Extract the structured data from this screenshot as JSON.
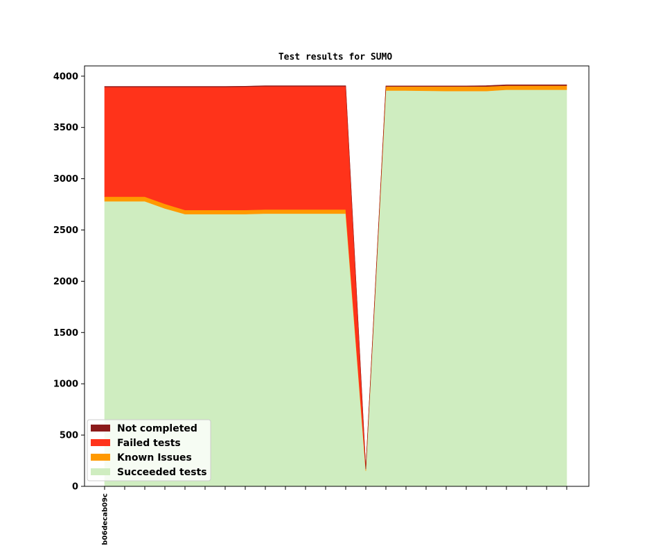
{
  "chart_data": {
    "type": "area",
    "stacked": true,
    "title": "Test results for SUMO",
    "xlabel": "",
    "ylabel": "",
    "ylim": [
      0,
      4100
    ],
    "yticks": [
      0,
      500,
      1000,
      1500,
      2000,
      2500,
      3000,
      3500,
      4000
    ],
    "x": [
      0,
      1,
      2,
      3,
      4,
      5,
      6,
      7,
      8,
      9,
      10,
      11,
      12,
      13,
      14,
      15,
      16,
      17,
      18,
      19,
      20,
      21,
      22,
      23
    ],
    "xtick_labels": [
      "b06decab09c",
      "",
      "",
      "",
      "",
      "",
      "",
      "",
      "",
      "",
      "",
      "",
      "",
      "",
      "",
      "",
      "",
      "",
      "",
      "",
      "",
      "",
      "",
      ""
    ],
    "series": [
      {
        "name": "Succeeded tests",
        "color": "#cfedc0",
        "values": [
          2780,
          2780,
          2780,
          2710,
          2655,
          2655,
          2655,
          2655,
          2660,
          2660,
          2660,
          2660,
          2660,
          150,
          3860,
          3860,
          3858,
          3855,
          3855,
          3855,
          3868,
          3868,
          3868,
          3868
        ]
      },
      {
        "name": "Known Issues",
        "color": "#ff9900",
        "values": [
          45,
          45,
          45,
          45,
          40,
          40,
          40,
          40,
          40,
          40,
          40,
          40,
          40,
          15,
          40,
          40,
          42,
          45,
          45,
          45,
          40,
          40,
          40,
          40
        ]
      },
      {
        "name": "Failed tests",
        "color": "#ff331a",
        "values": [
          1070,
          1070,
          1070,
          1140,
          1200,
          1200,
          1200,
          1202,
          1202,
          1202,
          1202,
          1202,
          1202,
          5,
          0,
          0,
          0,
          0,
          0,
          0,
          0,
          0,
          0,
          0
        ]
      },
      {
        "name": "Not completed",
        "color": "#8b1a1a",
        "values": [
          5,
          5,
          5,
          5,
          5,
          5,
          5,
          5,
          5,
          5,
          5,
          5,
          5,
          1,
          5,
          5,
          5,
          5,
          5,
          8,
          8,
          8,
          8,
          8
        ]
      }
    ],
    "legend": {
      "placement": "lower-left",
      "order": [
        "Not completed",
        "Failed tests",
        "Known Issues",
        "Succeeded tests"
      ]
    },
    "grid": false
  }
}
